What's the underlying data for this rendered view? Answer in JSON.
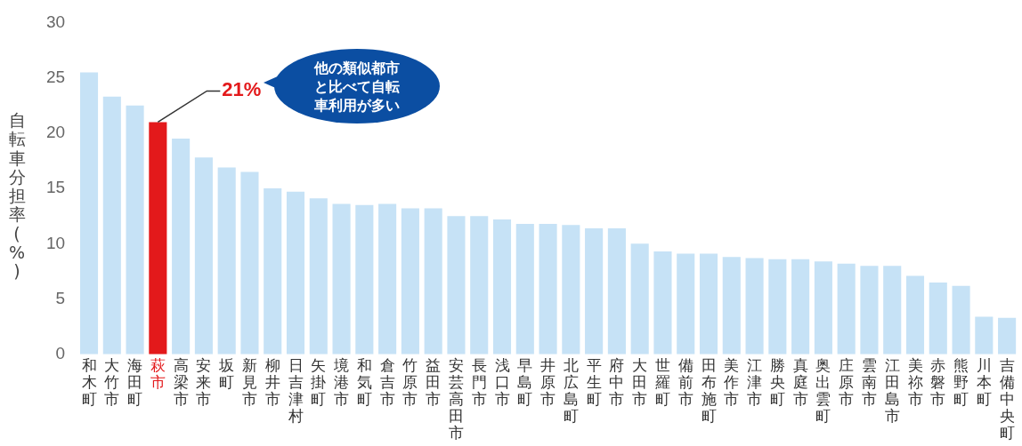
{
  "chart_data": {
    "type": "bar",
    "ylabel": "自転車分担率(%)",
    "categories": [
      "和木町",
      "大竹市",
      "海田町",
      "萩市",
      "高梁市",
      "安来市",
      "坂町",
      "新見市",
      "柳井市",
      "日吉津村",
      "矢掛町",
      "境港市",
      "和気町",
      "倉吉市",
      "竹原市",
      "益田市",
      "安芸高田市",
      "長門市",
      "浅口市",
      "早島町",
      "井原市",
      "北広島町",
      "平生町",
      "府中市",
      "大田市",
      "世羅町",
      "備前市",
      "田布施町",
      "美作市",
      "江津市",
      "勝央町",
      "真庭市",
      "奥出雲町",
      "庄原市",
      "雲南市",
      "江田島市",
      "美祢市",
      "赤磐市",
      "熊野町",
      "川本町",
      "吉備中央町"
    ],
    "values": [
      25.5,
      23.3,
      22.5,
      21,
      19.5,
      17.8,
      16.9,
      16.5,
      15.0,
      14.7,
      14.1,
      13.6,
      13.5,
      13.6,
      13.2,
      13.2,
      12.5,
      12.5,
      12.2,
      11.8,
      11.8,
      11.7,
      11.4,
      11.4,
      10.0,
      9.3,
      9.1,
      9.1,
      8.8,
      8.7,
      8.6,
      8.6,
      8.4,
      8.2,
      8.0,
      8.0,
      7.1,
      6.5,
      6.2,
      3.4,
      3.3
    ],
    "colors": [
      "#c6e2f6",
      "#c6e2f6",
      "#c6e2f6",
      "#e3191b",
      "#c6e2f6",
      "#c6e2f6",
      "#c6e2f6",
      "#c6e2f6",
      "#c6e2f6",
      "#c6e2f6",
      "#c6e2f6",
      "#c6e2f6",
      "#c6e2f6",
      "#c6e2f6",
      "#c6e2f6",
      "#c6e2f6",
      "#c6e2f6",
      "#c6e2f6",
      "#c6e2f6",
      "#c6e2f6",
      "#c6e2f6",
      "#c6e2f6",
      "#c6e2f6",
      "#c6e2f6",
      "#c6e2f6",
      "#c6e2f6",
      "#c6e2f6",
      "#c6e2f6",
      "#c6e2f6",
      "#c6e2f6",
      "#c6e2f6",
      "#c6e2f6",
      "#c6e2f6",
      "#c6e2f6",
      "#c6e2f6",
      "#c6e2f6",
      "#c6e2f6",
      "#c6e2f6",
      "#c6e2f6",
      "#c6e2f6",
      "#c6e2f6"
    ],
    "ylim": [
      0,
      30
    ],
    "yticks": [
      0,
      5,
      10,
      15,
      20,
      25,
      30
    ],
    "grid": false,
    "legend": false,
    "annotations": [
      {
        "text": "21%",
        "x": "萩市",
        "y": 21
      },
      "他の類似都市と比べて自転車利用が多い"
    ]
  }
}
